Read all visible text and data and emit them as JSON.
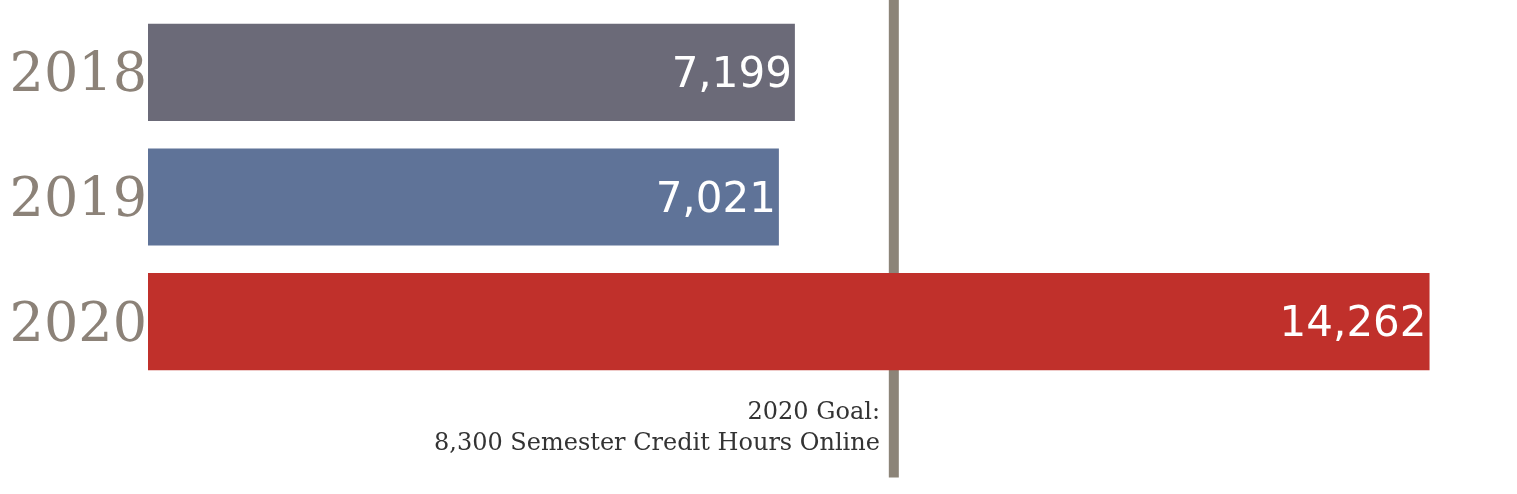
{
  "chart_data": {
    "type": "bar",
    "orientation": "horizontal",
    "categories": [
      "2018",
      "2019",
      "2020"
    ],
    "values": [
      7199,
      7021,
      14262
    ],
    "colors": [
      "#6b6a78",
      "#5f7398",
      "#c0302b"
    ],
    "value_labels": [
      "7,199",
      "7,021",
      "14,262"
    ],
    "tick_labels": "y",
    "legend": false,
    "ref_lines": [
      {
        "axis": "x",
        "value": 8300,
        "label": "2020 Goal:\n8,300 Semester Credit Hours Online",
        "color": "#8c8478"
      }
    ]
  }
}
